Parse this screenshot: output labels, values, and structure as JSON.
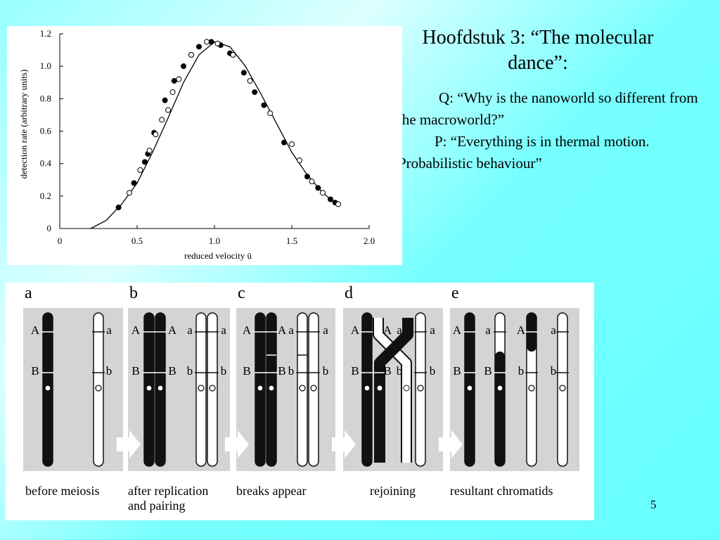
{
  "title": "Hoofdstuk 3: “The molecular dance”:",
  "question": "Q: “Why is the nanoworld so different from the macroworld?”",
  "answer": "P: “Everything is in thermal motion. Probabilistic behaviour”",
  "page_number": "5",
  "chart_data": {
    "type": "scatter",
    "xlabel": "reduced velocity ū",
    "ylabel": "detection rate (arbitrary units)",
    "xlim": [
      0,
      2
    ],
    "ylim": [
      0,
      1.2
    ],
    "xticks": [
      0,
      {
        "value": 0.5,
        "label": "0.5"
      },
      {
        "value": 1,
        "label": "1.0"
      },
      {
        "value": 1.5,
        "label": "1.5"
      },
      {
        "value": 2,
        "label": "2.0"
      }
    ],
    "yticks": [
      0,
      0.2,
      0.4,
      0.6,
      0.8,
      {
        "value": 1,
        "label": "1.0"
      },
      1.2
    ],
    "series": [
      {
        "marker": "line",
        "color": "#000",
        "x": [
          0.2,
          0.3,
          0.4,
          0.5,
          0.6,
          0.7,
          0.8,
          0.9,
          1.0,
          1.1,
          1.2,
          1.3,
          1.4,
          1.5,
          1.6,
          1.7,
          1.8
        ],
        "values": [
          0.0,
          0.05,
          0.15,
          0.28,
          0.47,
          0.68,
          0.9,
          1.07,
          1.15,
          1.12,
          1.0,
          0.83,
          0.65,
          0.47,
          0.33,
          0.22,
          0.14
        ]
      },
      {
        "marker": "filled",
        "color": "#000",
        "x": [
          0.38,
          0.48,
          0.55,
          0.57,
          0.61,
          0.68,
          0.74,
          0.8,
          0.85,
          0.9,
          0.98,
          1.04,
          1.1,
          1.19,
          1.26,
          1.32,
          1.45,
          1.6,
          1.67,
          1.75,
          1.78
        ],
        "values": [
          0.13,
          0.28,
          0.41,
          0.46,
          0.59,
          0.79,
          0.91,
          1.0,
          1.07,
          1.12,
          1.15,
          1.13,
          1.08,
          0.96,
          0.84,
          0.76,
          0.53,
          0.32,
          0.25,
          0.18,
          0.16
        ]
      },
      {
        "marker": "open",
        "color": "#000",
        "x": [
          0.45,
          0.52,
          0.58,
          0.62,
          0.66,
          0.7,
          0.73,
          0.77,
          0.85,
          0.95,
          1.02,
          1.12,
          1.23,
          1.36,
          1.5,
          1.55,
          1.63,
          1.7,
          1.8
        ],
        "values": [
          0.22,
          0.36,
          0.48,
          0.58,
          0.67,
          0.73,
          0.84,
          0.92,
          1.07,
          1.15,
          1.14,
          1.07,
          0.91,
          0.71,
          0.52,
          0.42,
          0.29,
          0.22,
          0.15
        ]
      }
    ]
  },
  "diagram": {
    "panels": [
      {
        "letter": "a",
        "caption": [
          "before meiosis"
        ],
        "labels": [
          "A",
          "a",
          "B",
          "b"
        ]
      },
      {
        "letter": "b",
        "caption": [
          "after replication",
          "and pairing"
        ],
        "labels": [
          "A",
          "A",
          "a",
          "a",
          "B",
          "B",
          "b",
          "b"
        ]
      },
      {
        "letter": "c",
        "caption": [
          "breaks appear"
        ],
        "labels": [
          "A",
          "A",
          "a",
          "a",
          "B",
          "B",
          "b",
          "b"
        ]
      },
      {
        "letter": "d",
        "caption": [
          "rejoining"
        ],
        "labels": [
          "A",
          "A",
          "a",
          "a",
          "B",
          "B",
          "b",
          "b"
        ]
      },
      {
        "letter": "e",
        "caption": [
          "resultant chromatids"
        ],
        "labels": [
          "A",
          "a",
          "A",
          "a",
          "B",
          "B",
          "b",
          "b"
        ]
      }
    ]
  }
}
